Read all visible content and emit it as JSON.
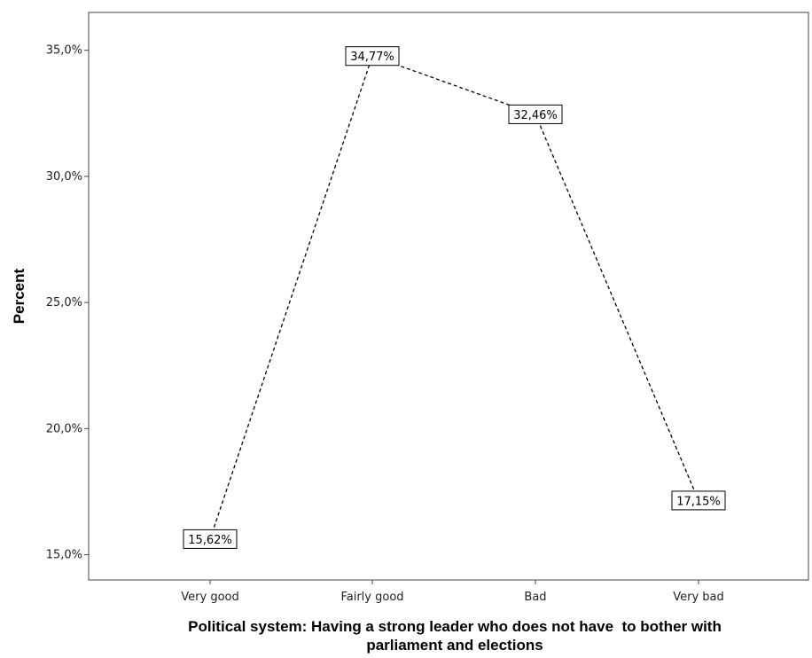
{
  "chart_data": {
    "type": "line",
    "categories": [
      "Very good",
      "Fairly good",
      "Bad",
      "Very bad"
    ],
    "values": [
      15.62,
      34.77,
      32.46,
      17.15
    ],
    "value_labels": [
      "15,62%",
      "34,77%",
      "32,46%",
      "17,15%"
    ],
    "xlabel_line1": "Political system: Having a strong leader who does not have  to bother with",
    "xlabel_line2": "parliament and elections",
    "ylabel": "Percent",
    "ylim": [
      14,
      36.5
    ],
    "yticks": [
      15,
      20,
      25,
      30,
      35
    ],
    "ytick_labels": [
      "15,0%",
      "20,0%",
      "25,0%",
      "30,0%",
      "35,0%"
    ],
    "line_style": "dashed",
    "line_color": "#000000",
    "grid": false,
    "legend": "none"
  }
}
